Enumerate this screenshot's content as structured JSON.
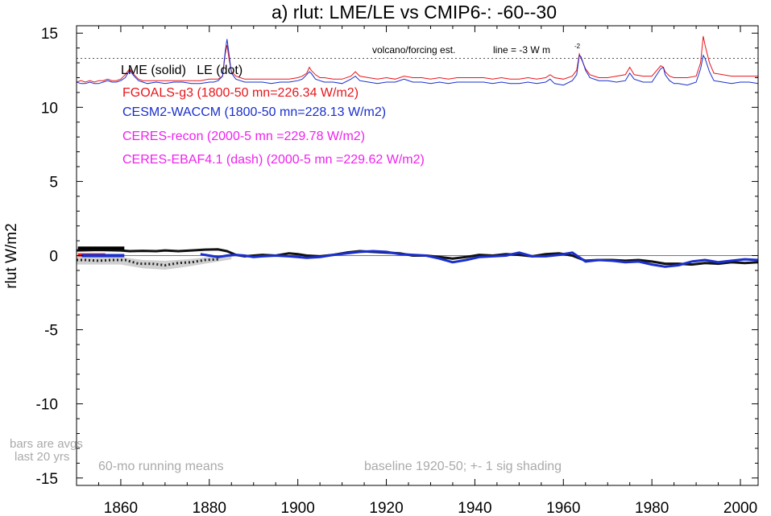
{
  "chart_data": {
    "type": "line",
    "title": "a) rlut: LME/LE vs CMIP6-: -60--30",
    "ylabel": "rlut W/m2",
    "xlabel": "",
    "xlim": [
      1850,
      2004
    ],
    "ylim": [
      -15.5,
      15.5
    ],
    "x_ticks": [
      1860,
      1880,
      1900,
      1920,
      1940,
      1960,
      1980,
      2000
    ],
    "y_ticks": [
      15,
      10,
      5,
      0,
      -5,
      -10,
      -15
    ],
    "grid": false,
    "zero_line": 0,
    "legend": {
      "header": "LME (solid)   LE (dot)",
      "entries": [
        {
          "text": "FGOALS-g3 (1800-50 mn=226.34 W/m2)",
          "color": "#e8161b"
        },
        {
          "text": "CESM2-WACCM (1800-50 mn=228.13 W/m2)",
          "color": "#1a2fcc"
        },
        {
          "text": "CERES-recon (2000-5 mn =229.78 W/m2)",
          "color": "#ee22ee"
        },
        {
          "text": "CERES-EBAF4.1 (dash) (2000-5 mn =229.62 W/m2)",
          "color": "#ee22ee"
        }
      ]
    },
    "annotations": {
      "volcano": "volcano/forcing est.",
      "line_note": "line = -3 W m",
      "line_sup": "-2",
      "bars_line1": "bars are avgs",
      "bars_line2": "last 20 yrs",
      "running": "60-mo running means",
      "baseline": "baseline 1920-50; +- 1 sig shading"
    },
    "volcano_line_y": 13.3,
    "volcano_series": {
      "x": [
        1850,
        1851,
        1852,
        1853,
        1854,
        1855,
        1856,
        1857,
        1858,
        1859,
        1860,
        1861,
        1862,
        1863,
        1864,
        1865,
        1866,
        1868,
        1870,
        1872,
        1874,
        1876,
        1878,
        1880,
        1881,
        1882,
        1883,
        1883.6,
        1884,
        1884.5,
        1885,
        1886,
        1887,
        1888,
        1890,
        1892,
        1894,
        1896,
        1898,
        1900,
        1901,
        1902,
        1902.6,
        1903,
        1904,
        1905,
        1906,
        1908,
        1910,
        1912,
        1913,
        1914,
        1916,
        1918,
        1920,
        1922,
        1924,
        1926,
        1928,
        1930,
        1932,
        1934,
        1936,
        1938,
        1940,
        1942,
        1944,
        1946,
        1948,
        1950,
        1952,
        1954,
        1956,
        1957,
        1958,
        1960,
        1962,
        1963,
        1963.6,
        1964,
        1965,
        1966,
        1968,
        1970,
        1972,
        1974,
        1975,
        1976,
        1978,
        1980,
        1982,
        1982.6,
        1983,
        1984,
        1985,
        1986,
        1988,
        1990,
        1991,
        1991.6,
        1992,
        1993,
        1994,
        1996,
        1998,
        2000,
        2002,
        2004
      ],
      "red": [
        11.7,
        11.8,
        11.7,
        11.8,
        11.7,
        11.8,
        11.8,
        11.9,
        11.8,
        11.8,
        11.9,
        12.2,
        12.6,
        12.2,
        11.9,
        11.8,
        11.8,
        11.8,
        11.8,
        11.8,
        11.8,
        11.8,
        11.8,
        11.9,
        11.9,
        11.9,
        12.1,
        13.6,
        14.2,
        13.2,
        12.4,
        12.1,
        12.0,
        11.9,
        11.9,
        11.9,
        11.9,
        11.9,
        11.9,
        12.0,
        12.1,
        12.3,
        12.7,
        12.5,
        12.2,
        12.0,
        12.0,
        11.9,
        11.9,
        12.1,
        12.4,
        12.1,
        12.0,
        11.9,
        12.0,
        11.9,
        12.1,
        12.0,
        12.0,
        11.9,
        12.0,
        11.9,
        12.0,
        12.0,
        12.0,
        12.0,
        11.9,
        12.0,
        11.9,
        11.9,
        12.0,
        11.9,
        12.0,
        12.2,
        12.0,
        11.9,
        12.1,
        12.5,
        13.6,
        13.3,
        12.6,
        12.2,
        12.0,
        12.0,
        12.1,
        12.2,
        12.7,
        12.2,
        12.1,
        12.1,
        12.8,
        12.7,
        12.4,
        12.1,
        12.0,
        12.0,
        12.0,
        12.1,
        13.0,
        14.8,
        14.2,
        13.0,
        12.3,
        12.2,
        12.1,
        12.1,
        12.1,
        12.1
      ],
      "blue": [
        11.7,
        11.6,
        11.6,
        11.7,
        11.6,
        11.6,
        11.7,
        11.8,
        11.7,
        11.7,
        11.8,
        12.0,
        12.5,
        12.1,
        11.8,
        11.7,
        11.6,
        11.7,
        11.6,
        11.7,
        11.7,
        11.6,
        11.6,
        11.7,
        11.7,
        11.8,
        12.1,
        13.8,
        14.6,
        13.5,
        12.3,
        11.9,
        11.8,
        11.7,
        11.7,
        11.7,
        11.6,
        11.7,
        11.7,
        11.8,
        11.9,
        12.2,
        12.4,
        12.3,
        11.9,
        11.8,
        11.7,
        11.7,
        11.6,
        11.9,
        12.1,
        11.8,
        11.7,
        11.6,
        11.7,
        11.7,
        11.9,
        11.7,
        11.7,
        11.6,
        11.7,
        11.6,
        11.7,
        11.7,
        11.7,
        11.7,
        11.6,
        11.7,
        11.6,
        11.6,
        11.7,
        11.6,
        11.7,
        11.9,
        11.6,
        11.5,
        11.8,
        12.2,
        13.5,
        13.4,
        12.5,
        12.0,
        11.8,
        11.8,
        11.7,
        11.8,
        12.3,
        11.9,
        11.7,
        11.7,
        12.6,
        12.7,
        12.2,
        11.8,
        11.6,
        11.6,
        11.5,
        11.7,
        12.6,
        13.5,
        13.3,
        12.4,
        11.8,
        11.7,
        11.6,
        11.7,
        11.7,
        11.6
      ]
    },
    "anomaly_series": [
      {
        "name": "FGOALS-g3 (LME, solid)",
        "color": "#111111",
        "style": "solid",
        "x": [
          1850,
          1855,
          1860,
          1862,
          1865,
          1868,
          1870,
          1873,
          1876,
          1879,
          1882,
          1884,
          1886,
          1888,
          1890,
          1892,
          1895,
          1898,
          1900,
          1902,
          1905,
          1908,
          1911,
          1914,
          1917,
          1920,
          1923,
          1926,
          1929,
          1932,
          1935,
          1938,
          1941,
          1944,
          1947,
          1950,
          1953,
          1956,
          1959,
          1962,
          1965,
          1968,
          1971,
          1974,
          1977,
          1980,
          1983,
          1986,
          1989,
          1992,
          1995,
          1998,
          2001,
          2004
        ],
        "y": [
          0.35,
          0.38,
          0.35,
          0.3,
          0.32,
          0.3,
          0.35,
          0.3,
          0.35,
          0.4,
          0.42,
          0.3,
          0.05,
          -0.05,
          0.0,
          0.05,
          0.0,
          0.15,
          0.1,
          0.0,
          -0.05,
          0.05,
          0.2,
          0.3,
          0.25,
          0.2,
          0.15,
          0.0,
          0.0,
          -0.1,
          -0.2,
          -0.1,
          0.05,
          0.0,
          0.1,
          0.05,
          -0.05,
          0.1,
          0.15,
          0.0,
          -0.35,
          -0.3,
          -0.3,
          -0.35,
          -0.3,
          -0.4,
          -0.55,
          -0.55,
          -0.6,
          -0.5,
          -0.55,
          -0.45,
          -0.5,
          -0.45
        ]
      },
      {
        "name": "CESM2-WACCM (LME, solid)",
        "color": "#1a2fcc",
        "style": "solid",
        "x": [
          1878,
          1880,
          1882,
          1884,
          1886,
          1888,
          1890,
          1892,
          1895,
          1898,
          1900,
          1902,
          1905,
          1908,
          1911,
          1914,
          1917,
          1920,
          1923,
          1926,
          1929,
          1932,
          1935,
          1938,
          1941,
          1944,
          1947,
          1950,
          1953,
          1956,
          1959,
          1962,
          1965,
          1968,
          1971,
          1974,
          1977,
          1980,
          1983,
          1986,
          1989,
          1992,
          1995,
          1998,
          2001,
          2004
        ],
        "y": [
          0.1,
          0.0,
          -0.1,
          0.0,
          0.05,
          0.0,
          -0.1,
          -0.05,
          0.0,
          -0.05,
          -0.1,
          -0.15,
          -0.1,
          0.05,
          0.15,
          0.25,
          0.3,
          0.25,
          0.1,
          0.05,
          0.0,
          -0.2,
          -0.45,
          -0.3,
          -0.1,
          -0.05,
          0.0,
          0.2,
          -0.05,
          -0.05,
          0.05,
          0.2,
          -0.4,
          -0.3,
          -0.35,
          -0.45,
          -0.4,
          -0.6,
          -0.75,
          -0.65,
          -0.4,
          -0.3,
          -0.45,
          -0.35,
          -0.25,
          -0.3
        ]
      },
      {
        "name": "FGOALS-g3 (LE, dot)",
        "color": "#222222",
        "style": "dot",
        "x": [
          1850,
          1852,
          1855,
          1858,
          1861,
          1864,
          1867,
          1870,
          1873,
          1876,
          1879,
          1882
        ],
        "y": [
          -0.3,
          -0.3,
          -0.35,
          -0.3,
          -0.3,
          -0.55,
          -0.55,
          -0.65,
          -0.5,
          -0.45,
          -0.3,
          -0.25
        ]
      }
    ],
    "shading": {
      "x": [
        1850,
        1855,
        1860,
        1865,
        1870,
        1875,
        1880,
        1885
      ],
      "y_low": [
        -0.6,
        -0.6,
        -0.6,
        -0.85,
        -0.95,
        -0.75,
        -0.5,
        -0.25
      ],
      "y_high": [
        0.0,
        0.0,
        -0.1,
        -0.3,
        -0.35,
        -0.25,
        -0.1,
        0.1
      ]
    },
    "bars": [
      {
        "color": "#000000",
        "y": 0.5,
        "x0": 1850.3,
        "x1": 1860.8
      },
      {
        "color": "#e8161b",
        "y": 0.05,
        "x0": 1850.3,
        "x1": 1856.5
      },
      {
        "color": "#1a2fcc",
        "y": 0.0,
        "x0": 1851.2,
        "x1": 1860.8
      }
    ]
  }
}
